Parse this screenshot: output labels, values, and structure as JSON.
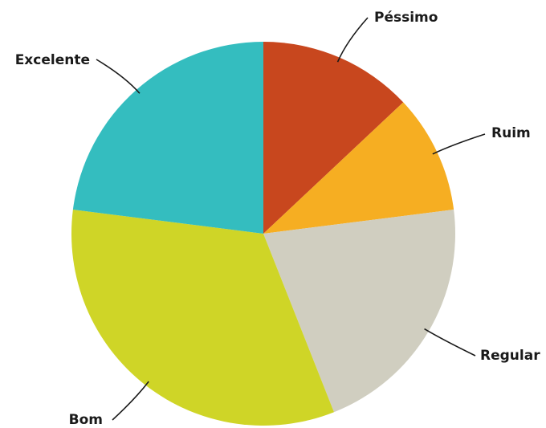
{
  "chart_data": {
    "type": "pie",
    "title": "",
    "start": "12 o'clock",
    "direction": "clockwise",
    "unit": "percent (estimated from slice angles)",
    "slices": [
      {
        "label": "Péssimo",
        "value": 13,
        "color": "#c8471e"
      },
      {
        "label": "Ruim",
        "value": 10,
        "color": "#f6ae22"
      },
      {
        "label": "Regular",
        "value": 21,
        "color": "#d0cec0"
      },
      {
        "label": "Bom",
        "value": 33,
        "color": "#cfd527"
      },
      {
        "label": "Excelente",
        "value": 23,
        "color": "#34bdbf"
      }
    ]
  }
}
